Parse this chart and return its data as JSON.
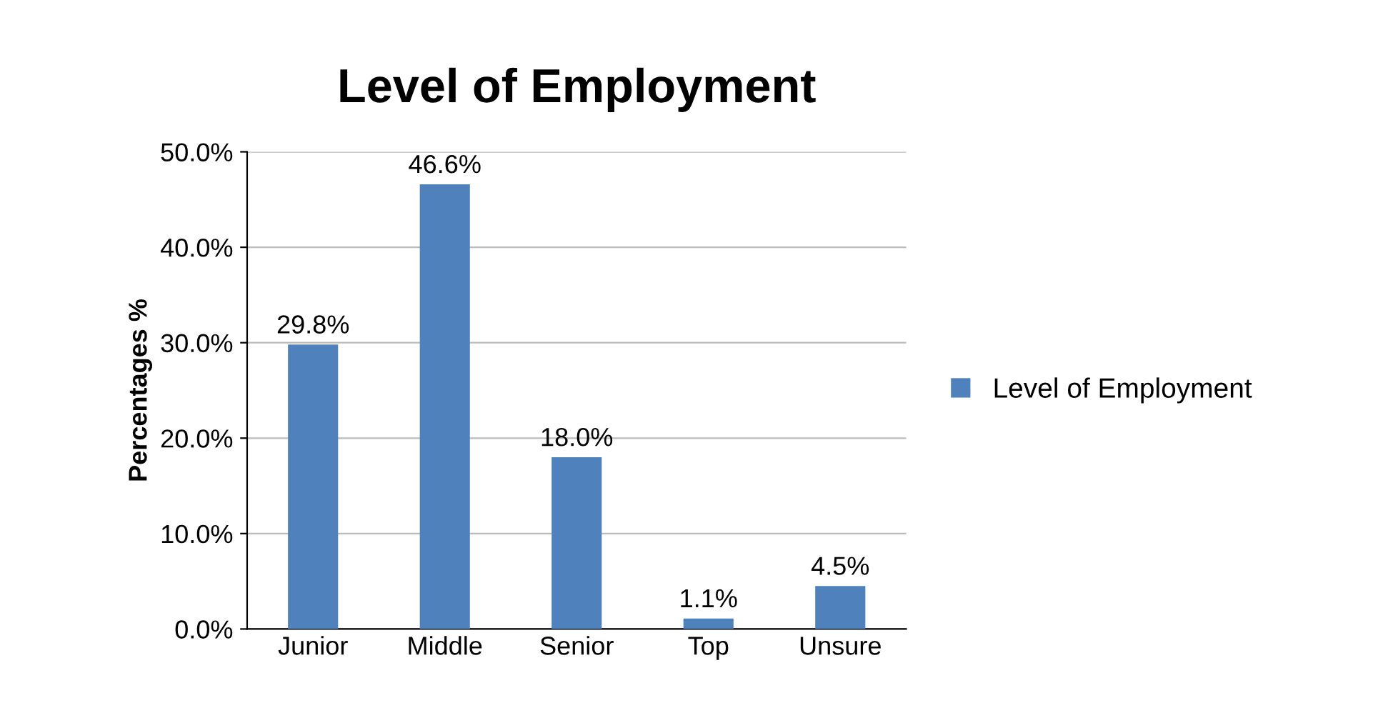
{
  "chart_data": {
    "type": "bar",
    "title": "Level of Employment",
    "ylabel": "Percentages %",
    "categories": [
      "Junior",
      "Middle",
      "Senior",
      "Top",
      "Unsure"
    ],
    "series": [
      {
        "name": "Level of Employment",
        "color": "#4f81bd",
        "values": [
          29.8,
          46.6,
          18.0,
          1.1,
          4.5
        ],
        "value_labels": [
          "29.8%",
          "46.6%",
          "18.0%",
          "1.1%",
          "4.5%"
        ]
      }
    ],
    "ylim": [
      0,
      50
    ],
    "yticks": [
      {
        "value": 0,
        "label": "0.0%"
      },
      {
        "value": 10,
        "label": "10.0%"
      },
      {
        "value": 20,
        "label": "20.0%"
      },
      {
        "value": 30,
        "label": "30.0%"
      },
      {
        "value": 40,
        "label": "40.0%"
      },
      {
        "value": 50,
        "label": "50.0%"
      }
    ],
    "grid": "y",
    "legend": "right"
  }
}
